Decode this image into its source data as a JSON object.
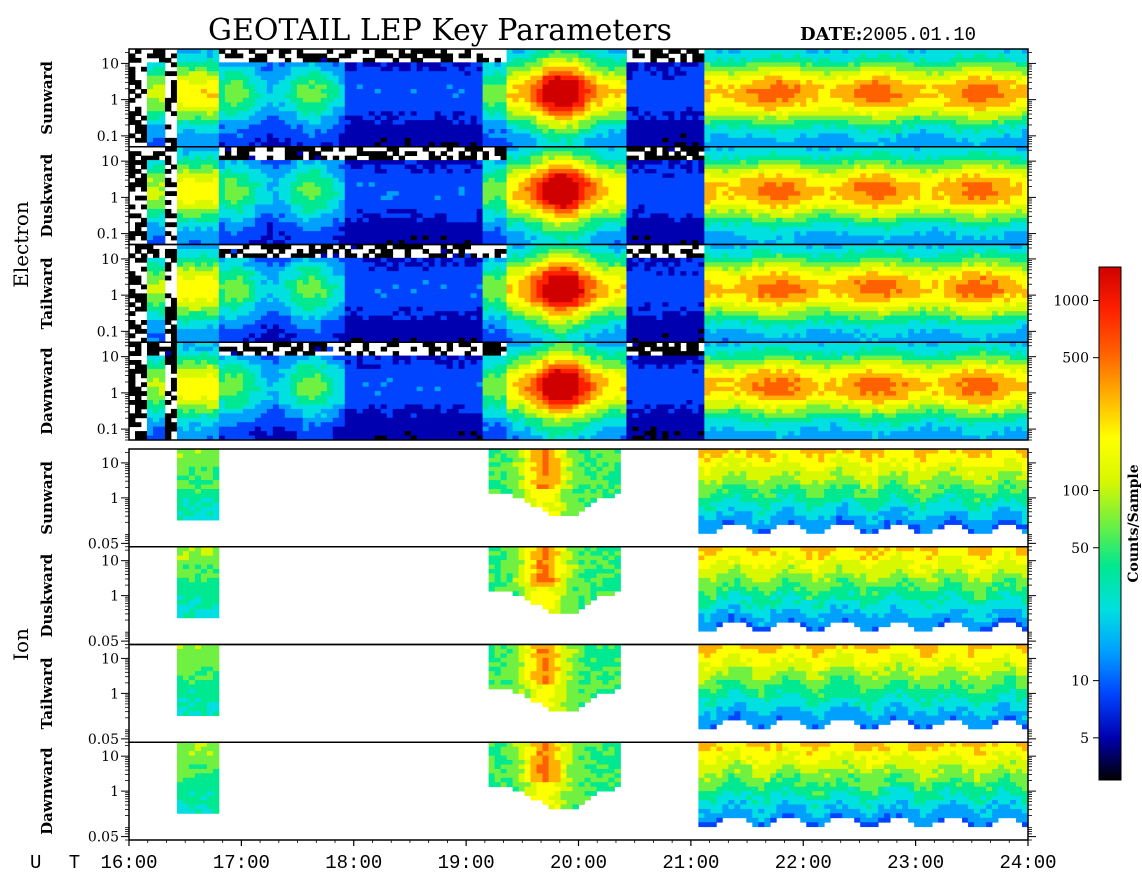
{
  "title": "GEOTAIL LEP Key Parameters",
  "date_label": "DATE:",
  "date_value": "2005.01.10",
  "groups": [
    {
      "label": "Electron"
    },
    {
      "label": "Ion"
    }
  ],
  "colors": {
    "colormap": [
      "#000000",
      "#0000b0",
      "#0044ff",
      "#00a0ff",
      "#00e0e0",
      "#00e890",
      "#70f040",
      "#d8f800",
      "#ffff00",
      "#ffb000",
      "#ff6000",
      "#ff2000",
      "#d00000"
    ],
    "frame": "#000000"
  },
  "chart_data": {
    "type": "heatmap",
    "x_axis": {
      "label": "U T",
      "range": [
        "16:00",
        "24:00"
      ],
      "ticks": [
        "16:00",
        "17:00",
        "18:00",
        "19:00",
        "20:00",
        "21:00",
        "22:00",
        "23:00",
        "24:00"
      ]
    },
    "colorbar": {
      "label": "Counts/Sample",
      "scale": "log",
      "range": [
        3,
        1500
      ],
      "ticks": [
        "1000",
        "500",
        "100",
        "50",
        "10",
        "5"
      ]
    },
    "panels": [
      {
        "group": "Electron",
        "label": "Sunward",
        "y_scale": "log",
        "y_range": [
          0.05,
          25
        ],
        "y_ticks": [
          "10",
          "1",
          "0.1"
        ]
      },
      {
        "group": "Electron",
        "label": "Duskward",
        "y_scale": "log",
        "y_range": [
          0.05,
          25
        ],
        "y_ticks": [
          "10",
          "1",
          "0.1"
        ]
      },
      {
        "group": "Electron",
        "label": "Tailward",
        "y_scale": "log",
        "y_range": [
          0.05,
          25
        ],
        "y_ticks": [
          "10",
          "1",
          "0.1"
        ]
      },
      {
        "group": "Electron",
        "label": "Dawnward",
        "y_scale": "log",
        "y_range": [
          0.05,
          25
        ],
        "y_ticks": [
          "10",
          "1",
          "0.1"
        ]
      },
      {
        "group": "Ion",
        "label": "Sunward",
        "y_scale": "log",
        "y_range": [
          0.04,
          25
        ],
        "y_ticks": [
          "10",
          "1",
          "0.05"
        ]
      },
      {
        "group": "Ion",
        "label": "Duskward",
        "y_scale": "log",
        "y_range": [
          0.04,
          25
        ],
        "y_ticks": [
          "10",
          "1",
          "0.05"
        ]
      },
      {
        "group": "Ion",
        "label": "Tailward",
        "y_scale": "log",
        "y_range": [
          0.04,
          25
        ],
        "y_ticks": [
          "10",
          "1",
          "0.05"
        ]
      },
      {
        "group": "Ion",
        "label": "Dawnward",
        "y_scale": "log",
        "y_range": [
          0.04,
          25
        ],
        "y_ticks": [
          "10",
          "1",
          "0.05"
        ]
      }
    ]
  }
}
